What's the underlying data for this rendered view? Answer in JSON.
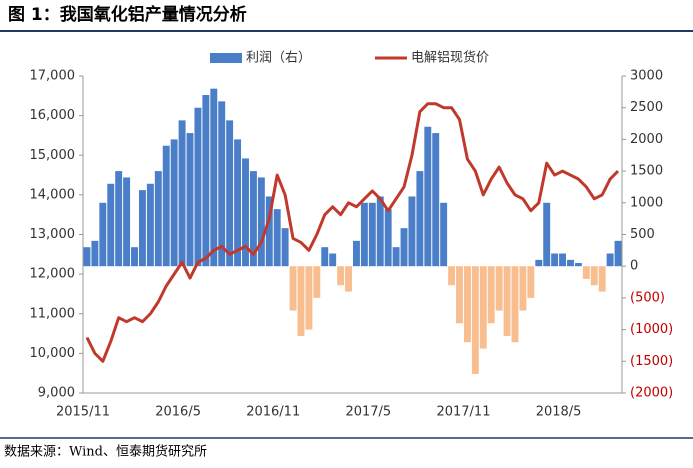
{
  "title": "图 1：我国氧化铝产量情况分析",
  "source": "数据来源：Wind、恒泰期货研究所",
  "chart_data": {
    "type": "combo",
    "categories": [
      "2015/11",
      null,
      null,
      null,
      null,
      null,
      null,
      null,
      null,
      null,
      null,
      null,
      "2016/5",
      null,
      null,
      null,
      null,
      null,
      null,
      null,
      null,
      null,
      null,
      null,
      "2016/11",
      null,
      null,
      null,
      null,
      null,
      null,
      null,
      null,
      null,
      null,
      null,
      "2017/5",
      null,
      null,
      null,
      null,
      null,
      null,
      null,
      null,
      null,
      null,
      null,
      "2017/11",
      null,
      null,
      null,
      null,
      null,
      null,
      null,
      null,
      null,
      null,
      null,
      "2018/5",
      null,
      null,
      null,
      null,
      null,
      null,
      null
    ],
    "series": [
      {
        "name": "利润（右）",
        "type": "bar",
        "axis": "y2",
        "color": "#4a7ec9",
        "negative_color": "#f8be8f",
        "values": [
          300,
          400,
          1000,
          1300,
          1500,
          1400,
          300,
          1200,
          1300,
          1500,
          1900,
          2000,
          2300,
          2100,
          2500,
          2700,
          2800,
          2600,
          2300,
          2000,
          1700,
          1500,
          1400,
          1100,
          900,
          600,
          -700,
          -1100,
          -1000,
          -500,
          300,
          200,
          -300,
          -400,
          400,
          1000,
          1000,
          1100,
          900,
          300,
          600,
          1100,
          1500,
          2200,
          2100,
          1000,
          -300,
          -900,
          -1200,
          -1700,
          -1300,
          -900,
          -700,
          -1100,
          -1200,
          -700,
          -500,
          100,
          1000,
          200,
          200,
          100,
          50,
          -200,
          -300,
          -400,
          200,
          400
        ]
      },
      {
        "name": "电解铝现货价",
        "type": "line",
        "color": "#c0392b",
        "values": [
          10400,
          10000,
          9800,
          10300,
          10900,
          10800,
          10900,
          10800,
          11000,
          11300,
          11700,
          12000,
          12300,
          11900,
          12300,
          12400,
          12600,
          12700,
          12500,
          12600,
          12700,
          12500,
          12800,
          13400,
          14500,
          14000,
          12900,
          12800,
          12600,
          13000,
          13500,
          13700,
          13500,
          13800,
          13700,
          13900,
          14100,
          13900,
          13600,
          13900,
          14200,
          15000,
          16100,
          16300,
          16300,
          16200,
          16200,
          15900,
          14900,
          14600,
          14000,
          14400,
          14700,
          14300,
          14000,
          13900,
          13600,
          13800,
          14800,
          14500,
          14600,
          14500,
          14400,
          14200,
          13900,
          14000,
          14400,
          14600
        ]
      }
    ],
    "ylim": [
      9000,
      17000
    ],
    "yticks": [
      {
        "value": 9000,
        "label": "9,000"
      },
      {
        "value": 10000,
        "label": "10,000"
      },
      {
        "value": 11000,
        "label": "11,000"
      },
      {
        "value": 12000,
        "label": "12,000"
      },
      {
        "value": 13000,
        "label": "13,000"
      },
      {
        "value": 14000,
        "label": "14,000"
      },
      {
        "value": 15000,
        "label": "15,000"
      },
      {
        "value": 16000,
        "label": "16,000"
      },
      {
        "value": 17000,
        "label": "17,000"
      }
    ],
    "y2lim": [
      -2000,
      3000
    ],
    "y2ticks": [
      {
        "value": -2000,
        "label": "(2000)"
      },
      {
        "value": -1500,
        "label": "(1500)"
      },
      {
        "value": -1000,
        "label": "(1000)"
      },
      {
        "value": -500,
        "label": "(500)"
      },
      0,
      500,
      1000,
      1500,
      2000,
      2500,
      3000
    ],
    "legend": "top"
  }
}
